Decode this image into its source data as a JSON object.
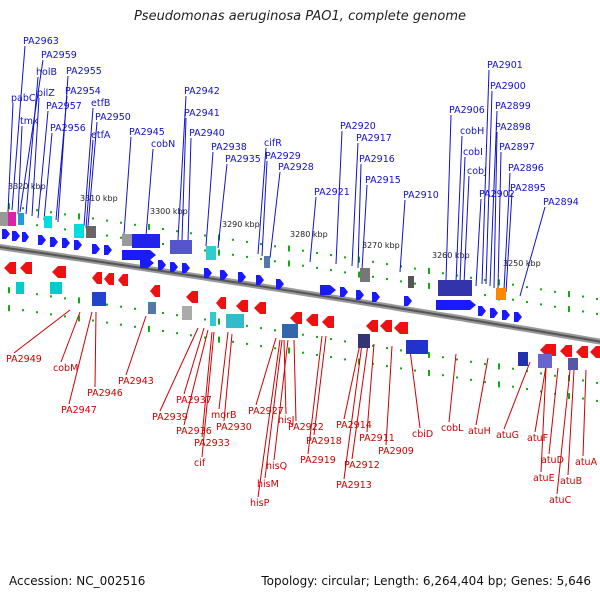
{
  "title": "Pseudomonas aeruginosa PAO1, complete genome",
  "footer": {
    "accession": "Accession: NC_002516",
    "summary": "Topology: circular; Length: 6,264,404 bp; Genes: 5,646"
  },
  "colors": {
    "forward": "#1a1aff",
    "reverse": "#ee1111",
    "backbone": "#777777",
    "tick": "#11aa11",
    "label_forward": "#1111cc",
    "label_reverse": "#cc0000"
  },
  "scale_labels": [
    "3320 kbp",
    "3310 kbp",
    "3300 kbp",
    "3290 kbp",
    "3280 kbp",
    "3270 kbp",
    "3260 kbp",
    "3250 kbp"
  ],
  "forward_labels": [
    "PA2963",
    "PA2959",
    "holB",
    "pabC",
    "pilZ",
    "tmk",
    "PA2955",
    "PA2957",
    "PA2954",
    "PA2956",
    "etfB",
    "PA2950",
    "etfA",
    "PA2945",
    "cobN",
    "PA2942",
    "PA2941",
    "PA2940",
    "PA2938",
    "PA2935",
    "cifR",
    "PA2929",
    "PA2928",
    "PA2920",
    "PA2917",
    "PA2921",
    "PA2916",
    "PA2915",
    "PA2910",
    "PA2901",
    "PA2900",
    "PA2906",
    "PA2899",
    "cobH",
    "PA2898",
    "cobI",
    "PA2897",
    "cobJ",
    "PA2896",
    "PA2902",
    "PA2895",
    "PA2894"
  ],
  "reverse_labels": [
    "PA2949",
    "cobM",
    "PA2946",
    "PA2947",
    "PA2943",
    "PA2937",
    "PA2939",
    "PA2936",
    "morB",
    "PA2930",
    "PA2933",
    "cif",
    "PA2927",
    "hisJ",
    "PA2922",
    "hisQ",
    "hisM",
    "hisP",
    "PA2918",
    "PA2919",
    "PA2914",
    "PA2911",
    "PA2912",
    "PA2913",
    "PA2909",
    "cbiD",
    "cobL",
    "atuH",
    "atuG",
    "atuF",
    "atuD",
    "atuE",
    "atuB",
    "atuA",
    "atuC"
  ]
}
